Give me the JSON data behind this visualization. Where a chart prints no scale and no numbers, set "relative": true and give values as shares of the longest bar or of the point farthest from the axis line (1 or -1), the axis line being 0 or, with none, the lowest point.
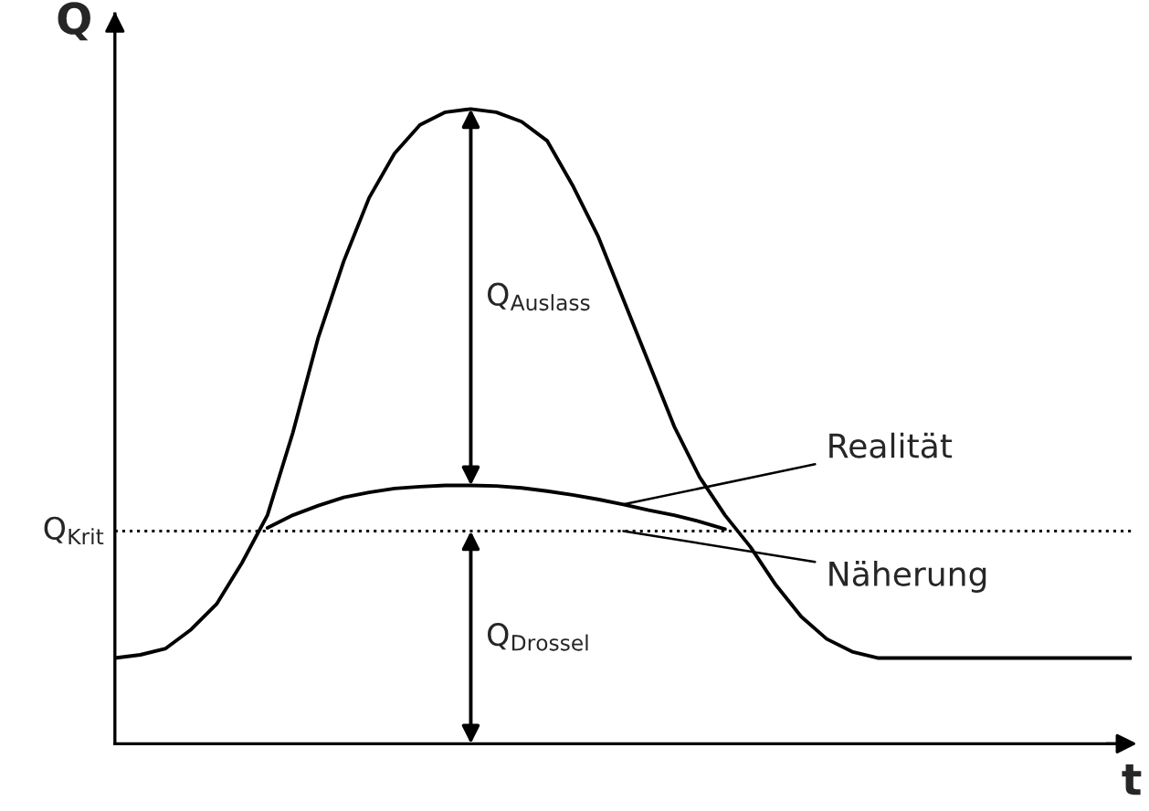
{
  "chart_data": {
    "type": "line",
    "relative": true,
    "xlabel": "t",
    "ylabel": "Q",
    "legend": false,
    "line_style": "solid",
    "categories": [
      null,
      null,
      null,
      null,
      null,
      null,
      null,
      null,
      null,
      null,
      null,
      null,
      null,
      null,
      null,
      null,
      null,
      null,
      null,
      null,
      null,
      null,
      null,
      null,
      null,
      null,
      null,
      null,
      null,
      null,
      null,
      null,
      null,
      null,
      null,
      null,
      null,
      null,
      null,
      null,
      null
    ],
    "series": [
      {
        "color": "#000000",
        "values": [
          0.135,
          0.14,
          0.15,
          0.18,
          0.22,
          0.285,
          0.36,
          0.49,
          0.64,
          0.76,
          0.86,
          0.93,
          0.975,
          0.995,
          1.0,
          0.995,
          0.98,
          0.95,
          0.88,
          0.8,
          0.7,
          0.6,
          0.5,
          0.42,
          0.36,
          0.31,
          0.25,
          0.2,
          0.165,
          0.145,
          0.135,
          0.135,
          0.135,
          0.135,
          0.135,
          0.135,
          0.135,
          0.135,
          0.135,
          0.135,
          0.135
        ]
      },
      {
        "name": "Realität",
        "color": "#000000",
        "values": [
          null,
          null,
          null,
          null,
          null,
          null,
          0.34,
          0.36,
          0.375,
          0.388,
          0.396,
          0.402,
          0.405,
          0.407,
          0.407,
          0.406,
          0.403,
          0.398,
          0.392,
          0.385,
          0.377,
          0.368,
          0.36,
          0.35,
          0.338,
          null,
          null,
          null,
          null,
          null,
          null,
          null,
          null,
          null,
          null,
          null,
          null,
          null,
          null,
          null,
          null
        ]
      }
    ],
    "ref_lines": [
      {
        "axis": "y",
        "value": 0.335,
        "label": "Q$_{Krit}$",
        "line_style": "dotted",
        "color": "#000000"
      }
    ],
    "annotations": [
      "Q$_{Auslass}$",
      "Q$_{Drossel}$",
      {
        "text": "Näherung",
        "y": 0.335
      }
    ]
  }
}
